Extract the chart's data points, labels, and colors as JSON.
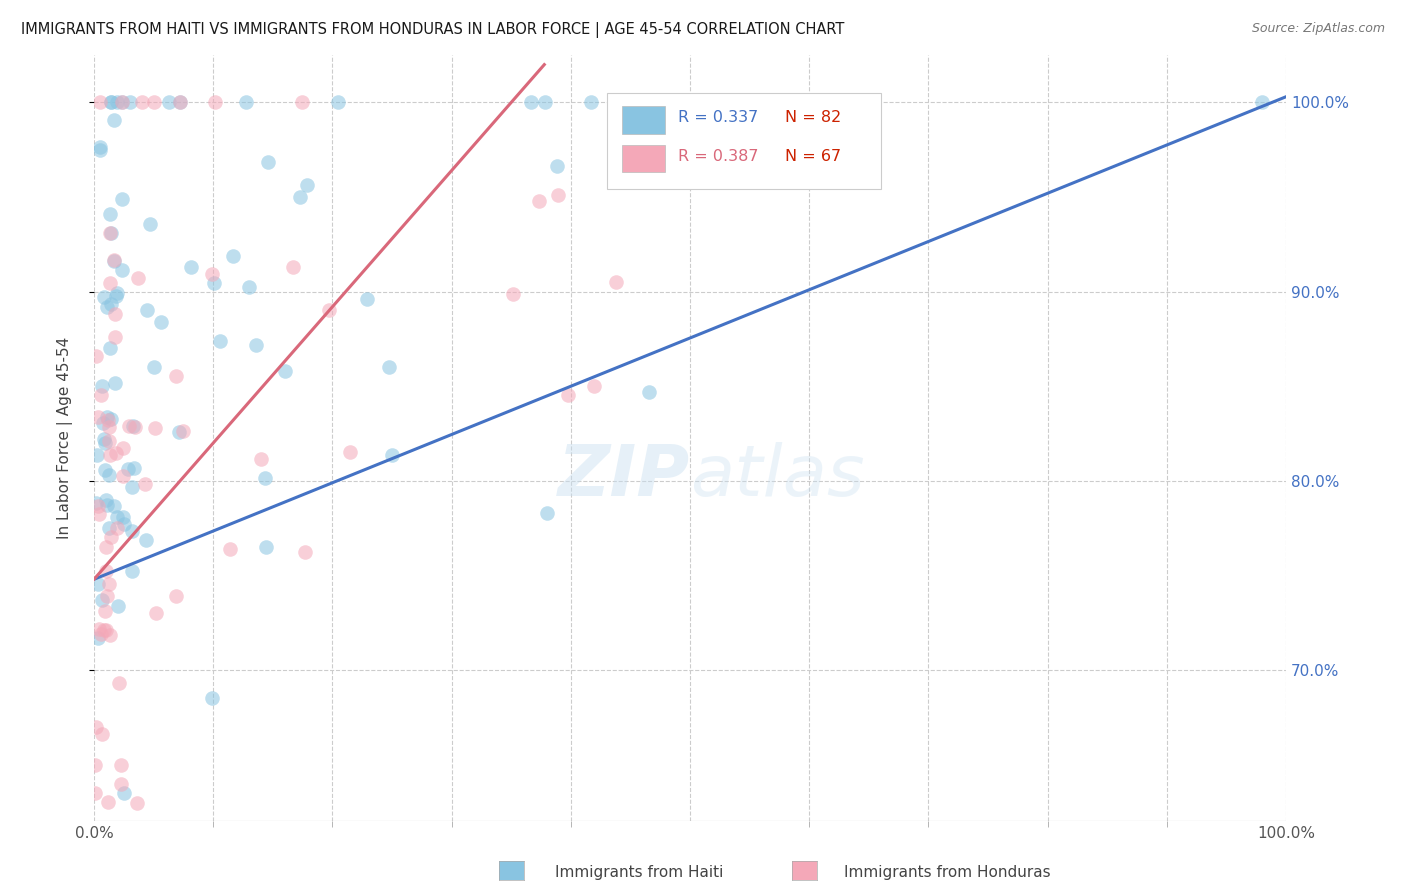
{
  "title": "IMMIGRANTS FROM HAITI VS IMMIGRANTS FROM HONDURAS IN LABOR FORCE | AGE 45-54 CORRELATION CHART",
  "source": "Source: ZipAtlas.com",
  "ylabel": "In Labor Force | Age 45-54",
  "xlim": [
    0.0,
    1.0
  ],
  "ylim": [
    0.62,
    1.025
  ],
  "haiti_R": 0.337,
  "haiti_N": 82,
  "honduras_R": 0.387,
  "honduras_N": 67,
  "haiti_color": "#89c4e1",
  "honduras_color": "#f4a8b8",
  "haiti_line_color": "#4472c4",
  "honduras_line_color": "#d9687a",
  "right_yticks": [
    0.7,
    0.8,
    0.9,
    1.0
  ],
  "watermark_zip": "ZIP",
  "watermark_atlas": "atlas",
  "legend_haiti_r_color": "#4472c4",
  "legend_honduras_r_color": "#d9687a",
  "legend_n_color": "#cc2200"
}
